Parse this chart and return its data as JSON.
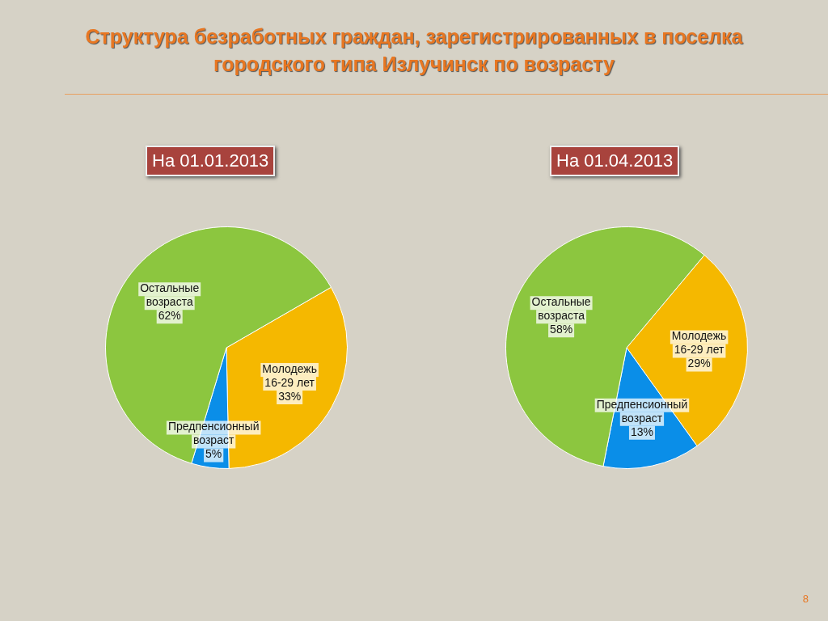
{
  "chart_data": [
    {
      "type": "pie",
      "title": "Структура безработных граждан, зарегистрированных в поселка городского типа Излучинск по возрасту",
      "subtitle": "На 01.01.2013",
      "categories": [
        "Молодежь 16-29 лет",
        "Предпенсионный возраст",
        "Остальные возраста"
      ],
      "values": [
        33,
        5,
        62
      ],
      "colors": [
        "#f5b800",
        "#0a8ee8",
        "#8cc63f"
      ],
      "value_labels": [
        "33%",
        "5%",
        "62%"
      ],
      "legend": false
    },
    {
      "type": "pie",
      "subtitle": "На 01.04.2013",
      "categories": [
        "Молодежь 16-29 лет",
        "Предпенсионный возраст",
        "Остальные возраста"
      ],
      "values": [
        29,
        13,
        58
      ],
      "colors": [
        "#f5b800",
        "#0a8ee8",
        "#8cc63f"
      ],
      "value_labels": [
        "29%",
        "13%",
        "58%"
      ],
      "legend": false,
      "annotations": [
        "8"
      ]
    }
  ]
}
